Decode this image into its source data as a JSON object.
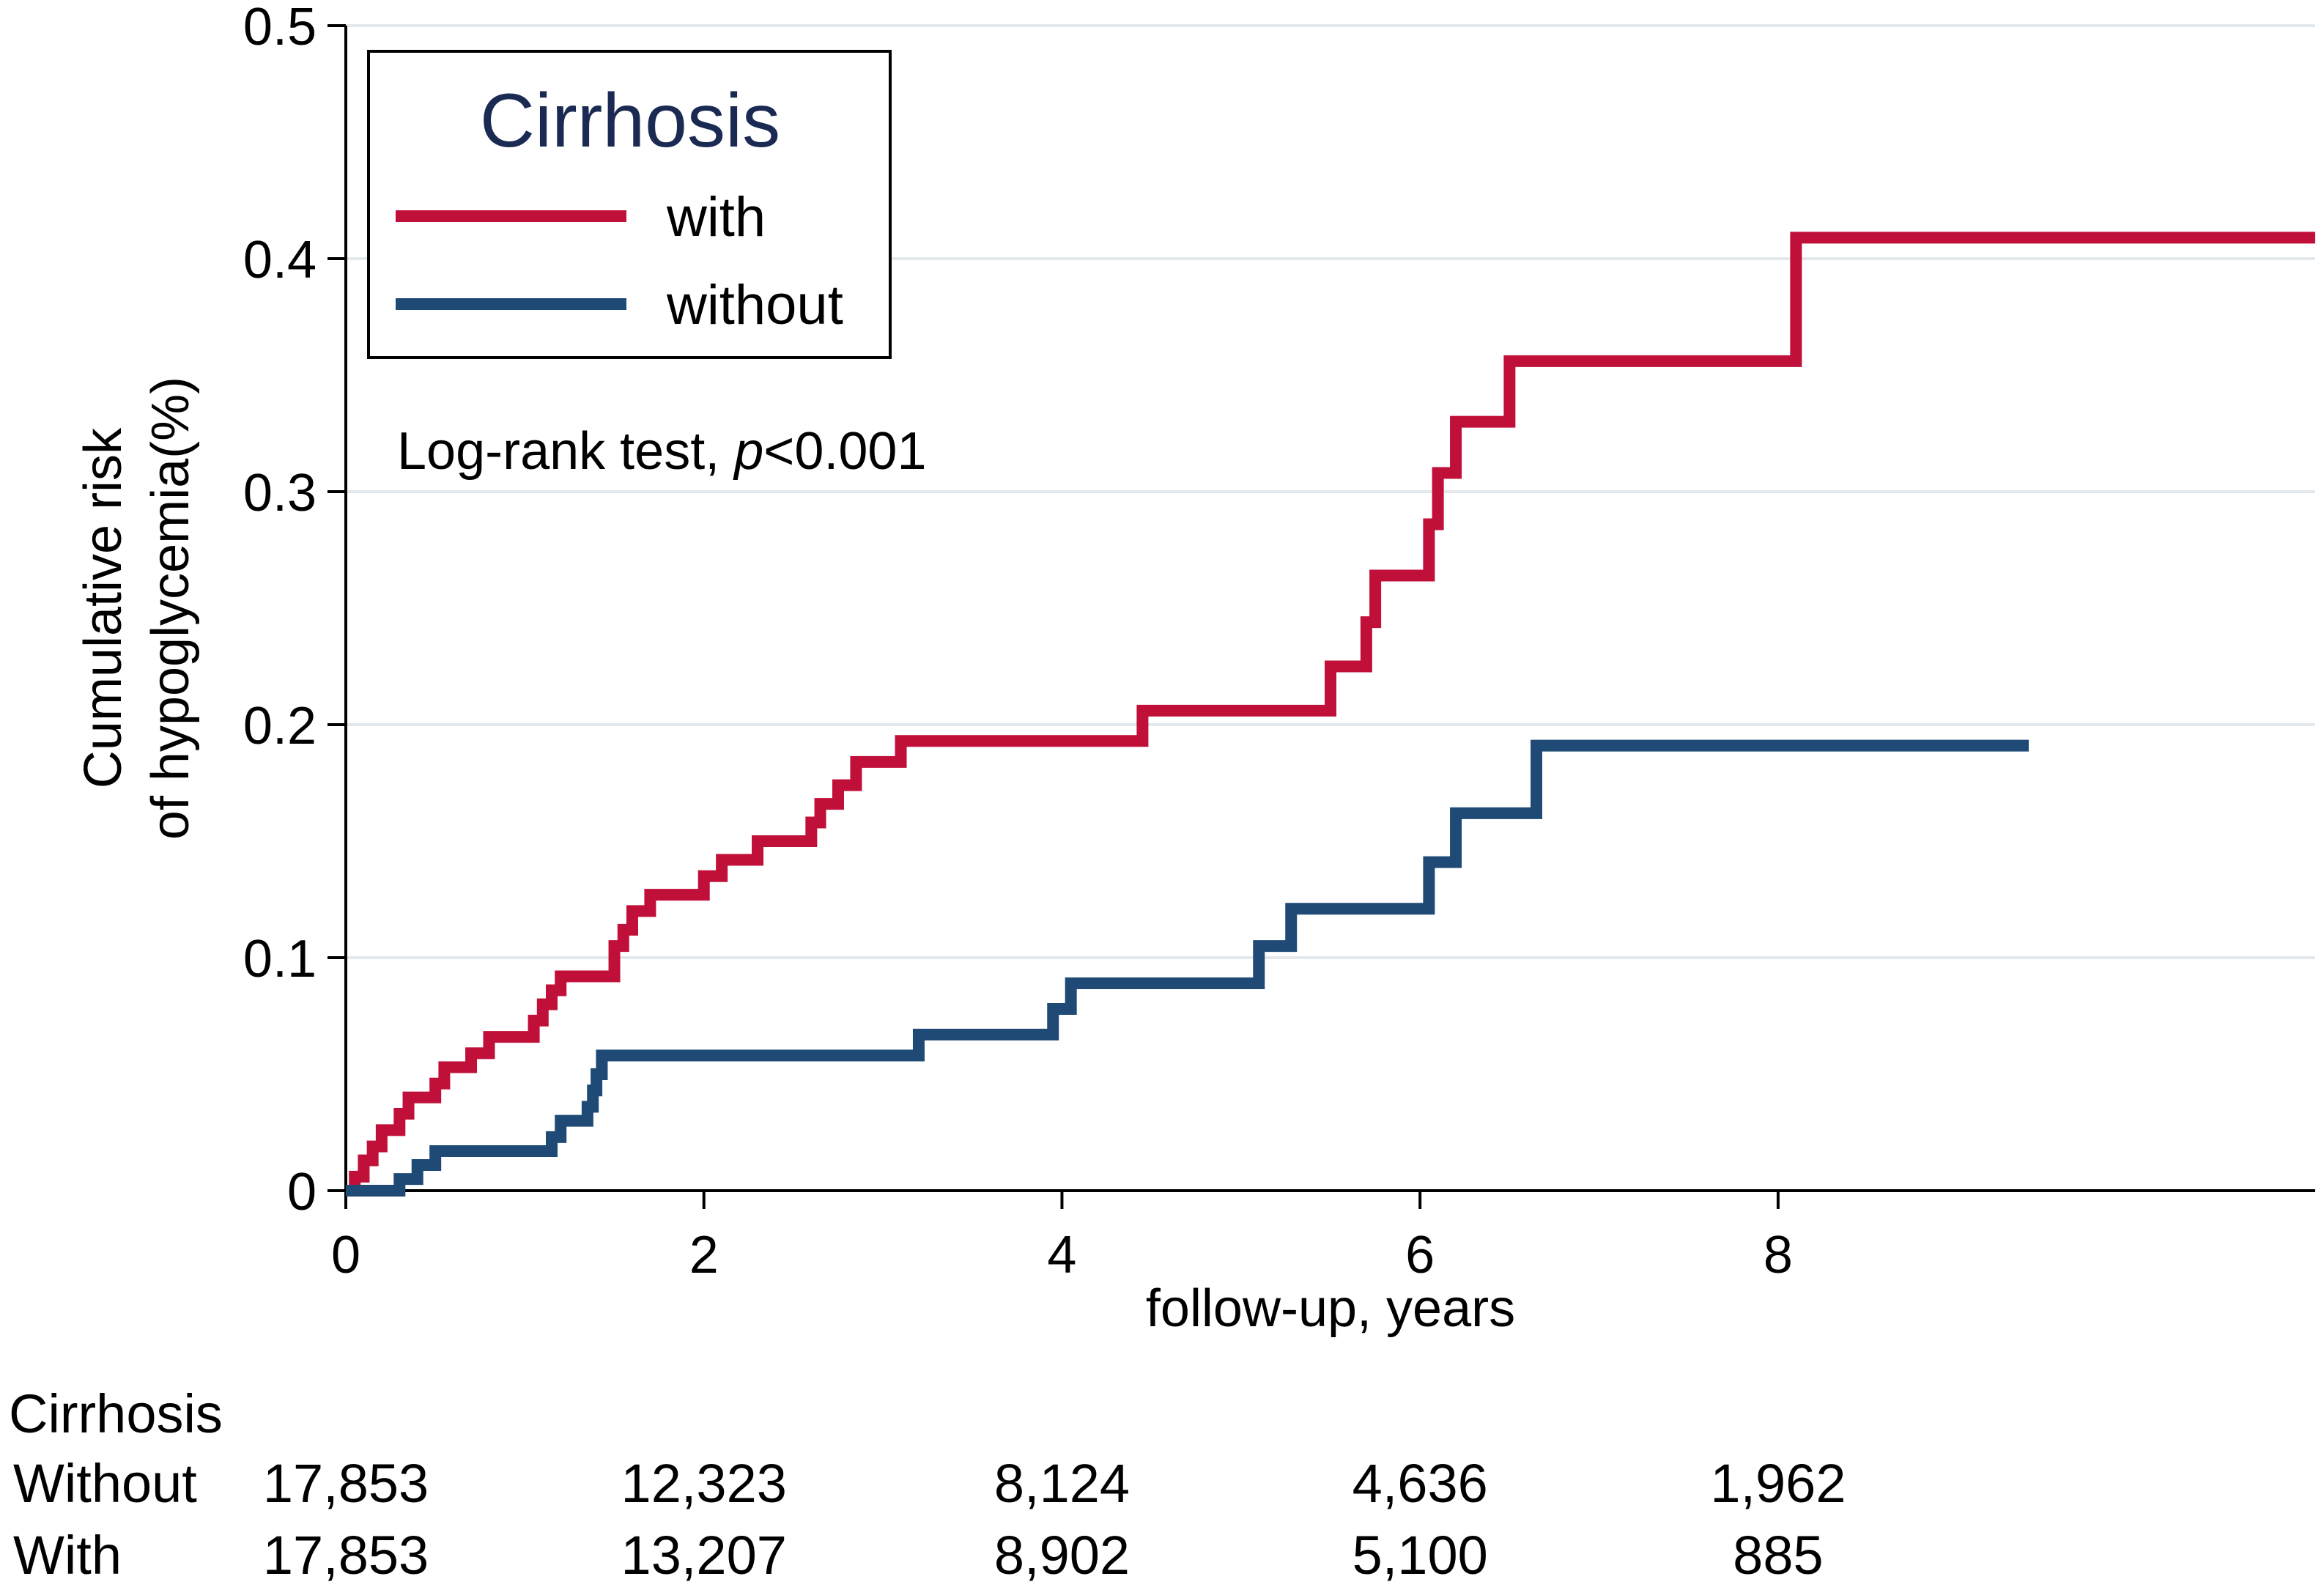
{
  "chart_data": {
    "type": "line",
    "subtype": "kaplan-meier cumulative incidence (step)",
    "xlabel": "follow-up, years",
    "ylabel": [
      "Cumulative risk",
      "of hypoglycemia(%)"
    ],
    "xlim": [
      0,
      11
    ],
    "ylim": [
      0,
      0.5
    ],
    "x_ticks": [
      0,
      2,
      4,
      6,
      8
    ],
    "x_tick_labels": [
      "0",
      "2",
      "4",
      "6",
      "8"
    ],
    "y_ticks": [
      0,
      0.1,
      0.2,
      0.3,
      0.4,
      0.5
    ],
    "y_tick_labels": [
      "0",
      "0.1",
      "0.2",
      "0.3",
      "0.4",
      "0.5"
    ],
    "grid": "horizontal",
    "legend": {
      "title": "Cirrhosis",
      "placement": "top-left",
      "entries": [
        {
          "label": "with",
          "color": "#c0103a"
        },
        {
          "label": "without",
          "color": "#1f4a75"
        }
      ]
    },
    "annotation": {
      "prefix": "Log-rank test, ",
      "italic": "p",
      "suffix": "<0.001"
    },
    "series": [
      {
        "name": "with",
        "color": "#c0103a",
        "points": [
          [
            0,
            0
          ],
          [
            0.05,
            0.006
          ],
          [
            0.1,
            0.013
          ],
          [
            0.15,
            0.019
          ],
          [
            0.2,
            0.026
          ],
          [
            0.3,
            0.033
          ],
          [
            0.35,
            0.04
          ],
          [
            0.5,
            0.046
          ],
          [
            0.55,
            0.053
          ],
          [
            0.7,
            0.059
          ],
          [
            0.8,
            0.066
          ],
          [
            1.05,
            0.073
          ],
          [
            1.1,
            0.08
          ],
          [
            1.15,
            0.086
          ],
          [
            1.2,
            0.092
          ],
          [
            1.5,
            0.105
          ],
          [
            1.55,
            0.112
          ],
          [
            1.6,
            0.12
          ],
          [
            1.7,
            0.127
          ],
          [
            2.0,
            0.135
          ],
          [
            2.1,
            0.142
          ],
          [
            2.3,
            0.15
          ],
          [
            2.6,
            0.158
          ],
          [
            2.65,
            0.166
          ],
          [
            2.75,
            0.174
          ],
          [
            2.85,
            0.184
          ],
          [
            3.1,
            0.193
          ],
          [
            4.45,
            0.206
          ],
          [
            5.5,
            0.225
          ],
          [
            5.7,
            0.244
          ],
          [
            5.75,
            0.264
          ],
          [
            6.05,
            0.286
          ],
          [
            6.1,
            0.308
          ],
          [
            6.2,
            0.33
          ],
          [
            6.5,
            0.356
          ],
          [
            8.1,
            0.409
          ],
          [
            11.0,
            0.409
          ]
        ]
      },
      {
        "name": "without",
        "color": "#1f4a75",
        "points": [
          [
            0,
            0
          ],
          [
            0.28,
            0
          ],
          [
            0.3,
            0.005
          ],
          [
            0.4,
            0.011
          ],
          [
            0.5,
            0.017
          ],
          [
            1.15,
            0.023
          ],
          [
            1.2,
            0.03
          ],
          [
            1.35,
            0.036
          ],
          [
            1.38,
            0.043
          ],
          [
            1.4,
            0.05
          ],
          [
            1.43,
            0.058
          ],
          [
            3.2,
            0.067
          ],
          [
            3.95,
            0.078
          ],
          [
            4.05,
            0.089
          ],
          [
            5.1,
            0.105
          ],
          [
            5.28,
            0.121
          ],
          [
            6.05,
            0.141
          ],
          [
            6.2,
            0.162
          ],
          [
            6.65,
            0.191
          ],
          [
            9.4,
            0.191
          ]
        ]
      }
    ]
  },
  "risk_table": {
    "title": "Cirrhosis",
    "rows": [
      {
        "label": "Without",
        "values": [
          "17,853",
          "12,323",
          "8,124",
          "4,636",
          "1,962"
        ]
      },
      {
        "label": "With",
        "values": [
          "17,853",
          "13,207",
          "8,902",
          "5,100",
          "885"
        ]
      }
    ]
  }
}
